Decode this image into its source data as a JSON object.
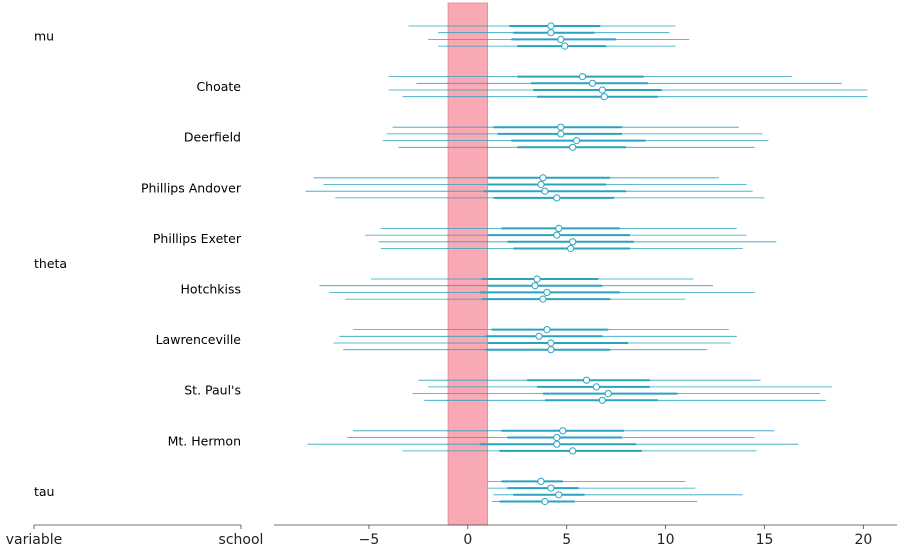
{
  "chart_data": {
    "type": "forest",
    "title": "",
    "xlabel": "",
    "ylabel": "",
    "xlim": [
      -9.8,
      21.7
    ],
    "xticks": [
      "−5",
      "0",
      "5",
      "10",
      "15",
      "20"
    ],
    "xtick_values": [
      -5,
      0,
      5,
      10,
      15,
      20
    ],
    "reference_band": {
      "from": -1,
      "to": 1,
      "color": "#f8a9b4"
    },
    "line_color": "#2aa3c0",
    "column_headers": {
      "variable": "variable",
      "school": "school"
    },
    "variables": [
      {
        "name": "mu",
        "rows": [
          0
        ]
      },
      {
        "name": "theta",
        "rows": [
          1,
          2,
          3,
          4,
          5,
          6,
          7,
          8
        ]
      },
      {
        "name": "tau",
        "rows": [
          9
        ]
      }
    ],
    "rows": [
      {
        "variable": "mu",
        "school": "",
        "chains": [
          {
            "mean": 4.2,
            "hdi_low": -3.0,
            "hdi_high": 10.5,
            "iqr_low": 2.1,
            "iqr_high": 6.7
          },
          {
            "mean": 4.2,
            "hdi_low": -1.5,
            "hdi_high": 10.2,
            "iqr_low": 2.3,
            "iqr_high": 6.4
          },
          {
            "mean": 4.7,
            "hdi_low": -2.0,
            "hdi_high": 11.2,
            "iqr_low": 2.2,
            "iqr_high": 7.5
          },
          {
            "mean": 4.9,
            "hdi_low": -1.5,
            "hdi_high": 10.5,
            "iqr_low": 2.5,
            "iqr_high": 7.0
          }
        ]
      },
      {
        "variable": "theta",
        "school": "Choate",
        "chains": [
          {
            "mean": 5.8,
            "hdi_low": -4.0,
            "hdi_high": 16.4,
            "iqr_low": 2.5,
            "iqr_high": 8.9
          },
          {
            "mean": 6.3,
            "hdi_low": -2.6,
            "hdi_high": 18.9,
            "iqr_low": 3.2,
            "iqr_high": 9.1
          },
          {
            "mean": 6.8,
            "hdi_low": -4.0,
            "hdi_high": 20.2,
            "iqr_low": 3.3,
            "iqr_high": 9.8
          },
          {
            "mean": 6.9,
            "hdi_low": -3.3,
            "hdi_high": 20.2,
            "iqr_low": 3.5,
            "iqr_high": 9.6
          }
        ]
      },
      {
        "variable": "theta",
        "school": "Deerfield",
        "chains": [
          {
            "mean": 4.7,
            "hdi_low": -3.8,
            "hdi_high": 13.7,
            "iqr_low": 1.3,
            "iqr_high": 7.8
          },
          {
            "mean": 4.7,
            "hdi_low": -4.1,
            "hdi_high": 14.9,
            "iqr_low": 1.5,
            "iqr_high": 7.8
          },
          {
            "mean": 5.5,
            "hdi_low": -4.3,
            "hdi_high": 15.2,
            "iqr_low": 2.2,
            "iqr_high": 9.0
          },
          {
            "mean": 5.3,
            "hdi_low": -3.5,
            "hdi_high": 14.5,
            "iqr_low": 2.5,
            "iqr_high": 8.0
          }
        ]
      },
      {
        "variable": "theta",
        "school": "Phillips Andover",
        "chains": [
          {
            "mean": 3.8,
            "hdi_low": -7.8,
            "hdi_high": 12.7,
            "iqr_low": 1.0,
            "iqr_high": 7.2
          },
          {
            "mean": 3.7,
            "hdi_low": -7.3,
            "hdi_high": 14.1,
            "iqr_low": 1.0,
            "iqr_high": 7.0
          },
          {
            "mean": 3.9,
            "hdi_low": -8.2,
            "hdi_high": 14.4,
            "iqr_low": 0.8,
            "iqr_high": 8.0
          },
          {
            "mean": 4.5,
            "hdi_low": -6.7,
            "hdi_high": 15.0,
            "iqr_low": 1.3,
            "iqr_high": 7.4
          }
        ]
      },
      {
        "variable": "theta",
        "school": "Phillips Exeter",
        "chains": [
          {
            "mean": 4.6,
            "hdi_low": -4.4,
            "hdi_high": 13.6,
            "iqr_low": 1.7,
            "iqr_high": 7.7
          },
          {
            "mean": 4.5,
            "hdi_low": -5.2,
            "hdi_high": 14.1,
            "iqr_low": 1.0,
            "iqr_high": 8.2
          },
          {
            "mean": 5.3,
            "hdi_low": -4.5,
            "hdi_high": 15.6,
            "iqr_low": 2.0,
            "iqr_high": 8.4
          },
          {
            "mean": 5.2,
            "hdi_low": -4.4,
            "hdi_high": 13.9,
            "iqr_low": 2.3,
            "iqr_high": 8.2
          }
        ]
      },
      {
        "variable": "theta",
        "school": "Hotchkiss",
        "chains": [
          {
            "mean": 3.5,
            "hdi_low": -4.9,
            "hdi_high": 11.4,
            "iqr_low": 0.7,
            "iqr_high": 6.6
          },
          {
            "mean": 3.4,
            "hdi_low": -7.5,
            "hdi_high": 12.4,
            "iqr_low": 1.0,
            "iqr_high": 6.8
          },
          {
            "mean": 4.0,
            "hdi_low": -7.0,
            "hdi_high": 14.5,
            "iqr_low": 0.6,
            "iqr_high": 7.7
          },
          {
            "mean": 3.8,
            "hdi_low": -6.2,
            "hdi_high": 11.0,
            "iqr_low": 0.7,
            "iqr_high": 7.2
          }
        ]
      },
      {
        "variable": "theta",
        "school": "Lawrenceville",
        "chains": [
          {
            "mean": 4.0,
            "hdi_low": -5.8,
            "hdi_high": 13.2,
            "iqr_low": 1.2,
            "iqr_high": 7.1
          },
          {
            "mean": 3.6,
            "hdi_low": -6.5,
            "hdi_high": 13.6,
            "iqr_low": 0.9,
            "iqr_high": 6.8
          },
          {
            "mean": 4.2,
            "hdi_low": -6.8,
            "hdi_high": 13.3,
            "iqr_low": 1.0,
            "iqr_high": 8.1
          },
          {
            "mean": 4.2,
            "hdi_low": -6.3,
            "hdi_high": 12.1,
            "iqr_low": 0.9,
            "iqr_high": 7.2
          }
        ]
      },
      {
        "variable": "theta",
        "school": "St. Paul's",
        "chains": [
          {
            "mean": 6.0,
            "hdi_low": -2.5,
            "hdi_high": 14.8,
            "iqr_low": 3.0,
            "iqr_high": 9.2
          },
          {
            "mean": 6.5,
            "hdi_low": -2.0,
            "hdi_high": 18.4,
            "iqr_low": 3.5,
            "iqr_high": 9.2
          },
          {
            "mean": 7.1,
            "hdi_low": -2.8,
            "hdi_high": 17.8,
            "iqr_low": 3.8,
            "iqr_high": 10.6
          },
          {
            "mean": 6.8,
            "hdi_low": -2.2,
            "hdi_high": 18.1,
            "iqr_low": 3.9,
            "iqr_high": 9.6
          }
        ]
      },
      {
        "variable": "theta",
        "school": "Mt. Hermon",
        "chains": [
          {
            "mean": 4.8,
            "hdi_low": -5.8,
            "hdi_high": 15.5,
            "iqr_low": 1.7,
            "iqr_high": 7.9
          },
          {
            "mean": 4.5,
            "hdi_low": -6.1,
            "hdi_high": 14.5,
            "iqr_low": 2.0,
            "iqr_high": 7.8
          },
          {
            "mean": 4.5,
            "hdi_low": -8.1,
            "hdi_high": 16.7,
            "iqr_low": 0.6,
            "iqr_high": 8.5
          },
          {
            "mean": 5.3,
            "hdi_low": -3.3,
            "hdi_high": 14.6,
            "iqr_low": 1.6,
            "iqr_high": 8.8
          }
        ]
      },
      {
        "variable": "tau",
        "school": "",
        "chains": [
          {
            "mean": 3.7,
            "hdi_low": 1.0,
            "hdi_high": 11.0,
            "iqr_low": 1.7,
            "iqr_high": 4.8
          },
          {
            "mean": 4.2,
            "hdi_low": 1.0,
            "hdi_high": 11.5,
            "iqr_low": 2.0,
            "iqr_high": 5.6
          },
          {
            "mean": 4.6,
            "hdi_low": 1.3,
            "hdi_high": 13.9,
            "iqr_low": 2.3,
            "iqr_high": 5.9
          },
          {
            "mean": 3.9,
            "hdi_low": 1.2,
            "hdi_high": 11.6,
            "iqr_low": 1.6,
            "iqr_high": 5.4
          }
        ]
      }
    ]
  }
}
